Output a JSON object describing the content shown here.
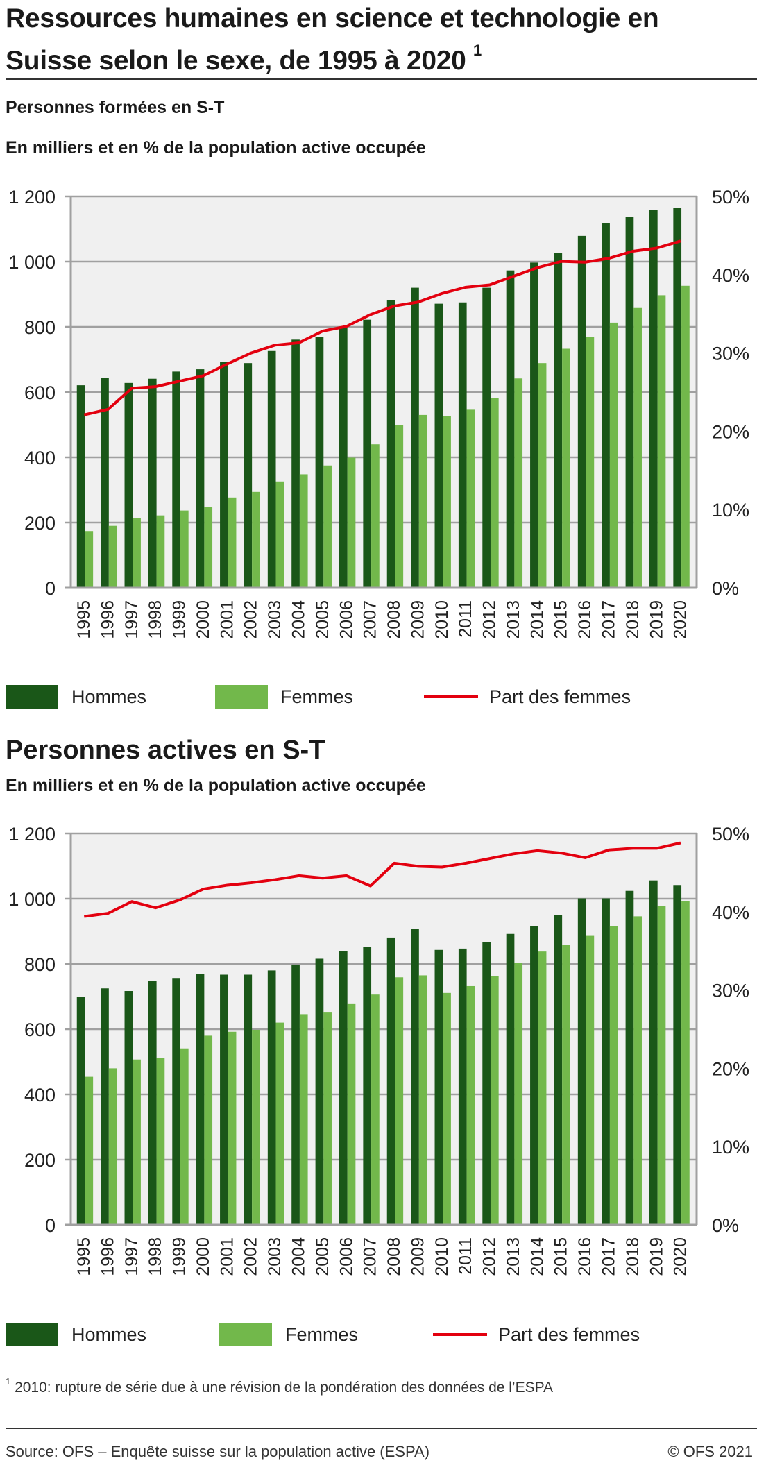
{
  "header": {
    "title_line1": "Ressources humaines en science et technologie en",
    "title_line2": "Suisse selon le sexe, de 1995 à 2020",
    "title_footnote_mark": "1"
  },
  "colors": {
    "hommes": "#1a5718",
    "femmes": "#72b84b",
    "part_des_femmes": "#e3000f",
    "plot_background": "#f0f0f0",
    "gridline": "#a0a0a0"
  },
  "legend": {
    "hommes": "Hommes",
    "femmes": "Femmes",
    "part": "Part des femmes"
  },
  "chart_data": [
    {
      "type": "bar",
      "title": "Personnes formées en S-T",
      "subtitle": "En milliers et en % de la population active occupée",
      "xlabel": "",
      "ylabel": "",
      "ylim": [
        0,
        1200
      ],
      "y_ticks": [
        0,
        200,
        400,
        600,
        800,
        1000,
        1200
      ],
      "y_tick_labels": [
        "0",
        "200",
        "400",
        "600",
        "800",
        "1 000",
        "1 200"
      ],
      "y2lim": [
        0,
        50
      ],
      "y2_ticks": [
        0,
        10,
        20,
        30,
        40,
        50
      ],
      "y2_tick_labels": [
        "0%",
        "10%",
        "20%",
        "30%",
        "40%",
        "50%"
      ],
      "grid": true,
      "legend_position": "bottom",
      "categories": [
        "1995",
        "1996",
        "1997",
        "1998",
        "1999",
        "2000",
        "2001",
        "2002",
        "2003",
        "2004",
        "2005",
        "2006",
        "2007",
        "2008",
        "2009",
        "2010",
        "2011",
        "2012",
        "2013",
        "2014",
        "2015",
        "2016",
        "2017",
        "2018",
        "2019",
        "2020"
      ],
      "series": [
        {
          "name": "Hommes",
          "type": "bar",
          "axis": "left",
          "values": [
            621,
            644,
            628,
            641,
            663,
            670,
            693,
            689,
            726,
            761,
            770,
            797,
            822,
            881,
            920,
            871,
            875,
            920,
            973,
            997,
            1026,
            1079,
            1117,
            1138,
            1159,
            1165
          ]
        },
        {
          "name": "Femmes",
          "type": "bar",
          "axis": "left",
          "values": [
            174,
            190,
            213,
            222,
            237,
            248,
            277,
            294,
            326,
            348,
            375,
            399,
            440,
            498,
            530,
            526,
            546,
            582,
            642,
            689,
            733,
            770,
            813,
            858,
            897,
            926
          ]
        },
        {
          "name": "Part des femmes",
          "type": "line",
          "axis": "right",
          "unit": "%",
          "values": [
            22.1,
            22.8,
            25.5,
            25.7,
            26.4,
            27.1,
            28.6,
            30.0,
            31.0,
            31.3,
            32.8,
            33.4,
            34.9,
            36.0,
            36.5,
            37.6,
            38.4,
            38.7,
            39.8,
            40.9,
            41.7,
            41.6,
            42.1,
            43.0,
            43.4,
            44.3
          ]
        }
      ]
    },
    {
      "type": "bar",
      "title": "Personnes actives en S-T",
      "subtitle": "En milliers et en % de la population active occupée",
      "xlabel": "",
      "ylabel": "",
      "ylim": [
        0,
        1200
      ],
      "y_ticks": [
        0,
        200,
        400,
        600,
        800,
        1000,
        1200
      ],
      "y_tick_labels": [
        "0",
        "200",
        "400",
        "600",
        "800",
        "1 000",
        "1 200"
      ],
      "y2lim": [
        0,
        50
      ],
      "y2_ticks": [
        0,
        10,
        20,
        30,
        40,
        50
      ],
      "y2_tick_labels": [
        "0%",
        "10%",
        "20%",
        "30%",
        "40%",
        "50%"
      ],
      "grid": true,
      "legend_position": "bottom",
      "categories": [
        "1995",
        "1996",
        "1997",
        "1998",
        "1999",
        "2000",
        "2001",
        "2002",
        "2003",
        "2004",
        "2005",
        "2006",
        "2007",
        "2008",
        "2009",
        "2010",
        "2011",
        "2012",
        "2013",
        "2014",
        "2015",
        "2016",
        "2017",
        "2018",
        "2019",
        "2020"
      ],
      "series": [
        {
          "name": "Hommes",
          "type": "bar",
          "axis": "left",
          "values": [
            698,
            725,
            717,
            747,
            757,
            770,
            767,
            767,
            780,
            798,
            816,
            840,
            852,
            881,
            907,
            843,
            847,
            868,
            892,
            917,
            949,
            1001,
            1001,
            1024,
            1056,
            1042
          ]
        },
        {
          "name": "Femmes",
          "type": "bar",
          "axis": "left",
          "values": [
            454,
            480,
            507,
            511,
            541,
            580,
            592,
            598,
            620,
            646,
            653,
            679,
            706,
            759,
            765,
            711,
            732,
            763,
            803,
            838,
            858,
            886,
            916,
            946,
            977,
            992
          ]
        },
        {
          "name": "Part des femmes",
          "type": "line",
          "axis": "right",
          "unit": "%",
          "values": [
            39.4,
            39.8,
            41.3,
            40.5,
            41.5,
            42.9,
            43.4,
            43.7,
            44.1,
            44.6,
            44.3,
            44.6,
            43.3,
            46.2,
            45.8,
            45.7,
            46.2,
            46.8,
            47.4,
            47.8,
            47.5,
            46.9,
            47.9,
            48.1,
            48.1,
            48.8
          ]
        }
      ]
    }
  ],
  "footnote": {
    "mark": "1",
    "text": "2010: rupture de série due à une révision de la pondération des données de l’ESPA"
  },
  "footer": {
    "source": "Source: OFS – Enquête suisse sur la population active (ESPA)",
    "copyright": "© OFS 2021"
  }
}
